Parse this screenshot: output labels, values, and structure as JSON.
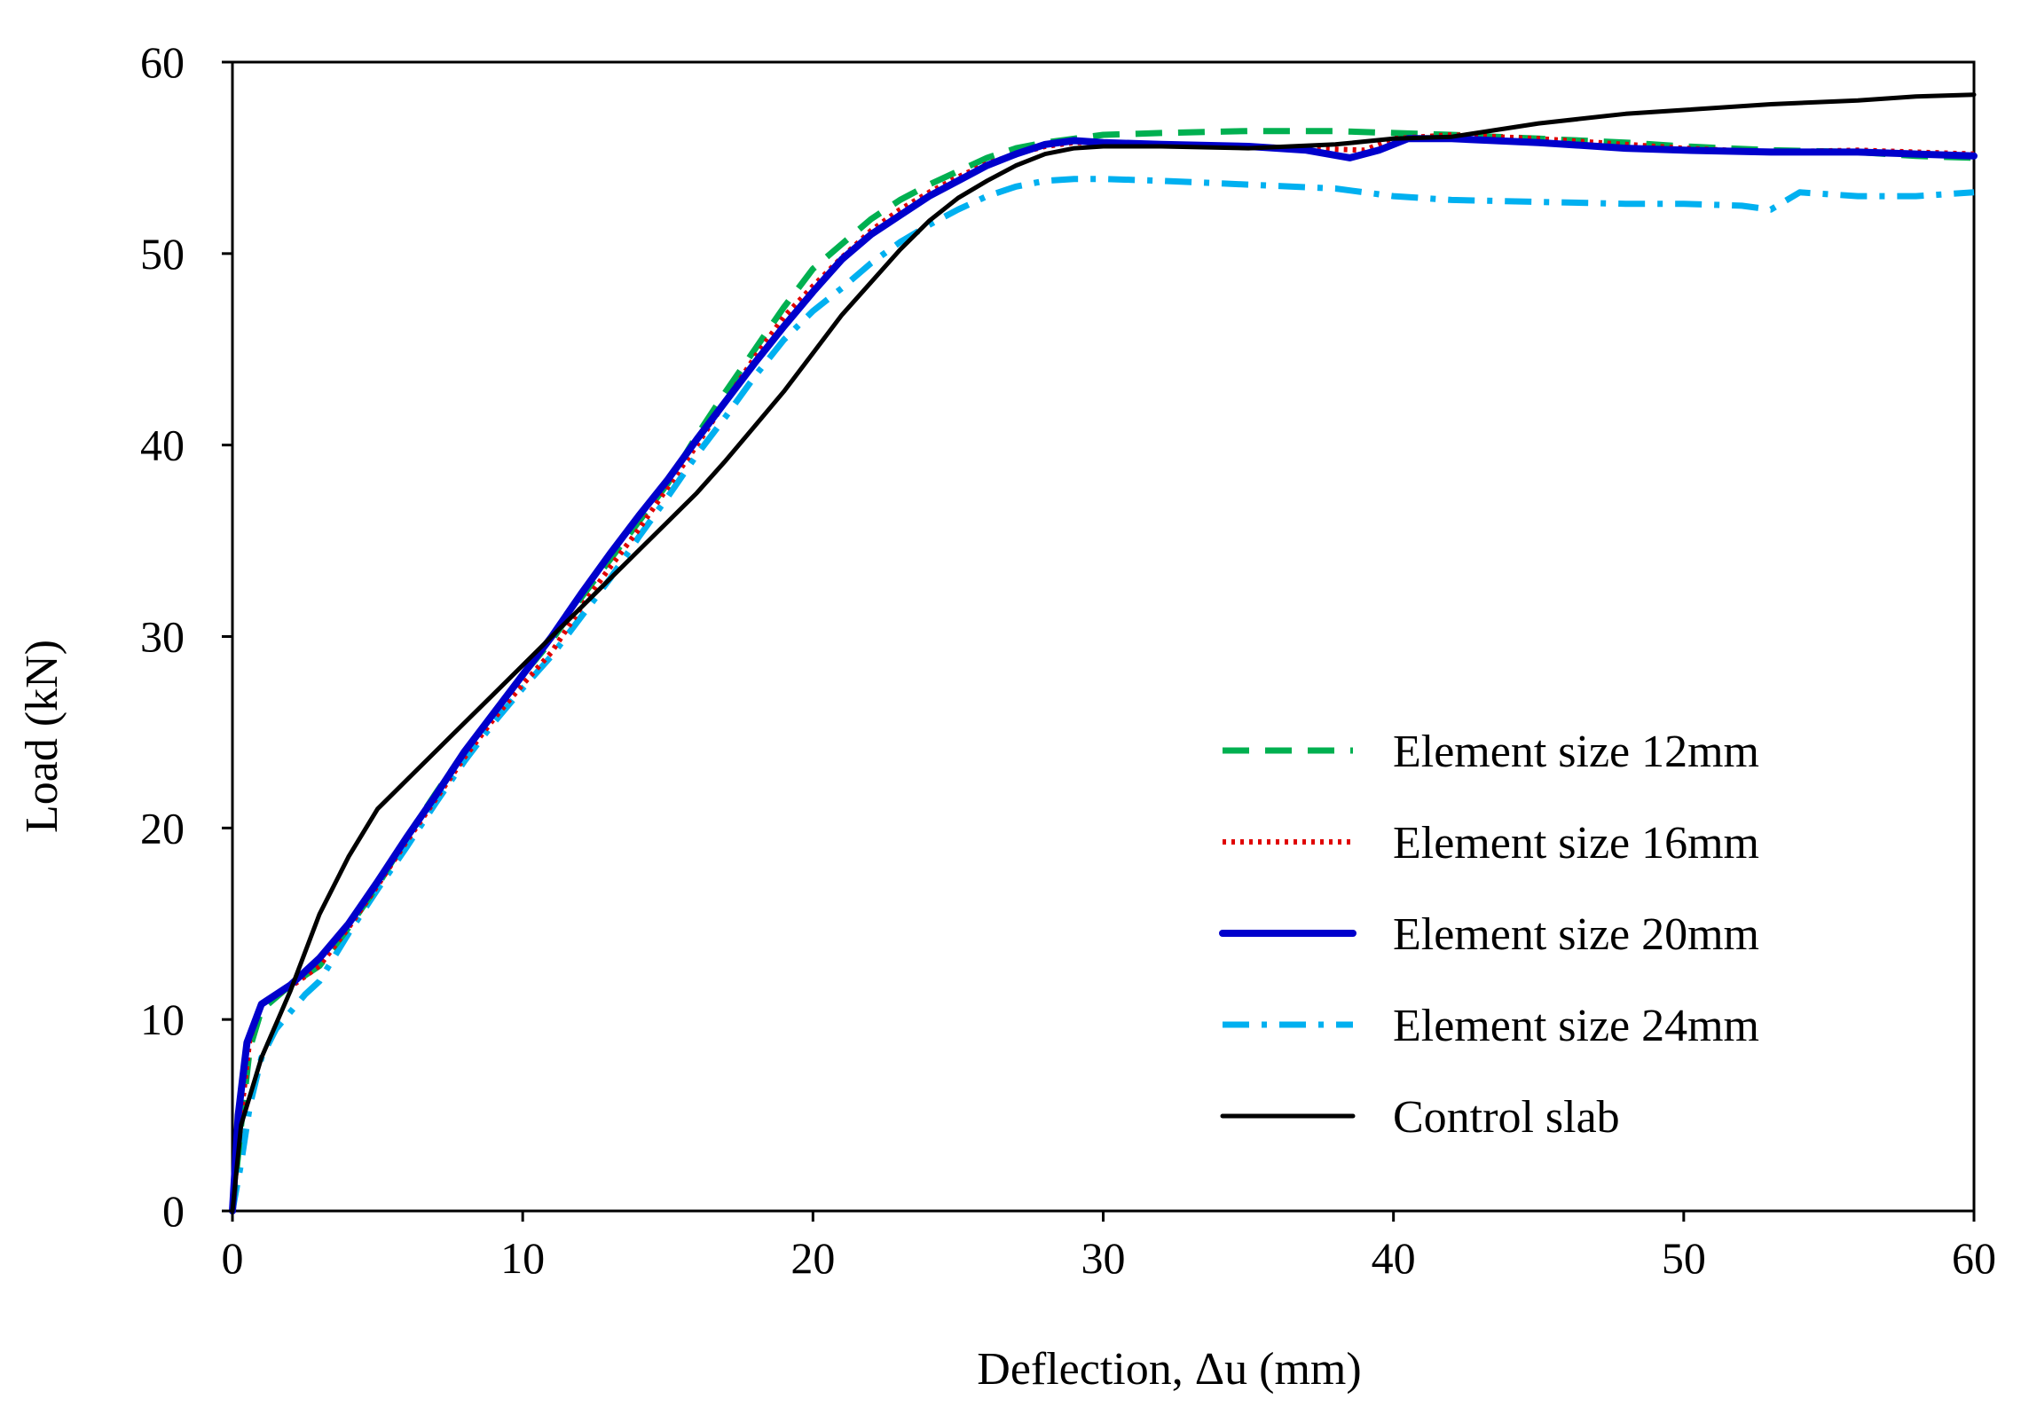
{
  "chart_data": {
    "type": "line",
    "title": "",
    "xlabel": "Deflection, Δu (mm)",
    "ylabel": "Load (kN)",
    "xlim": [
      0,
      60
    ],
    "ylim": [
      0,
      60
    ],
    "xticks": [
      0,
      10,
      20,
      30,
      40,
      50,
      60
    ],
    "yticks": [
      0,
      10,
      20,
      30,
      40,
      50,
      60
    ],
    "grid": false,
    "legend_position": "bottom-right",
    "series": [
      {
        "name": "Element size 12mm",
        "color": "#00B050",
        "style": "dashed",
        "x": [
          0,
          0.3,
          0.6,
          1.0,
          2.0,
          3.0,
          4.0,
          5.0,
          6.0,
          7.0,
          8.0,
          9.0,
          10.0,
          11.0,
          12.0,
          13.0,
          14.0,
          15.0,
          16.0,
          17.0,
          18.0,
          19.0,
          20.0,
          21.0,
          22.0,
          23.0,
          24.0,
          25.0,
          26.0,
          27.0,
          28.0,
          29.0,
          30.0,
          32.0,
          35.0,
          38.0,
          40.0,
          42.0,
          45.0,
          48.0,
          50.0,
          53.0,
          56.0,
          58.0,
          60.0
        ],
        "y": [
          0,
          4.5,
          8.5,
          10.5,
          11.8,
          12.8,
          14.8,
          17.0,
          19.5,
          21.8,
          24.0,
          26.0,
          28.0,
          29.8,
          32.0,
          34.0,
          36.0,
          38.0,
          40.5,
          42.8,
          45.0,
          47.2,
          49.2,
          50.5,
          51.8,
          52.8,
          53.6,
          54.3,
          55.0,
          55.5,
          55.8,
          56.0,
          56.2,
          56.3,
          56.4,
          56.4,
          56.3,
          56.2,
          56.0,
          55.8,
          55.6,
          55.4,
          55.3,
          55.1,
          55.0
        ]
      },
      {
        "name": "Element size 16mm",
        "color": "#E00000",
        "style": "dotted",
        "x": [
          0,
          0.3,
          0.6,
          1.0,
          2.0,
          3.0,
          4.0,
          5.0,
          6.0,
          7.0,
          8.0,
          9.0,
          10.0,
          11.0,
          12.0,
          13.0,
          14.0,
          15.0,
          16.0,
          17.0,
          18.0,
          19.0,
          20.0,
          21.0,
          22.0,
          23.0,
          24.0,
          25.0,
          26.0,
          27.0,
          28.0,
          29.0,
          30.0,
          32.0,
          35.0,
          37.0,
          39.0,
          40.0,
          42.0,
          45.0,
          46.0,
          48.0,
          50.0,
          53.0,
          56.0,
          60.0
        ],
        "y": [
          0,
          5.0,
          9.0,
          10.8,
          11.7,
          12.8,
          14.8,
          17.0,
          19.3,
          21.5,
          23.7,
          25.7,
          27.5,
          29.2,
          31.5,
          33.6,
          35.6,
          37.8,
          40.0,
          42.3,
          44.6,
          46.7,
          48.3,
          49.8,
          51.2,
          52.3,
          53.2,
          54.0,
          54.7,
          55.2,
          55.6,
          55.8,
          55.8,
          55.7,
          55.6,
          55.5,
          55.4,
          56.0,
          56.2,
          56.0,
          55.9,
          55.7,
          55.5,
          55.3,
          55.4,
          55.2
        ]
      },
      {
        "name": "Element size 20mm",
        "color": "#0000CC",
        "style": "solid-thick",
        "x": [
          0,
          0.2,
          0.5,
          1.0,
          2.0,
          3.0,
          4.0,
          5.0,
          6.0,
          7.0,
          8.0,
          9.0,
          10.0,
          11.0,
          12.0,
          13.0,
          14.0,
          15.0,
          16.0,
          17.0,
          18.0,
          19.0,
          20.0,
          21.0,
          22.0,
          23.0,
          24.0,
          25.0,
          26.0,
          27.0,
          28.0,
          29.0,
          30.0,
          32.0,
          35.0,
          37.0,
          38.5,
          39.5,
          40.5,
          42.0,
          45.0,
          48.0,
          50.0,
          53.0,
          56.0,
          60.0
        ],
        "y": [
          0,
          5.0,
          8.8,
          10.8,
          11.8,
          13.2,
          15.0,
          17.2,
          19.5,
          21.7,
          24.0,
          26.0,
          28.0,
          30.0,
          32.2,
          34.3,
          36.3,
          38.2,
          40.3,
          42.3,
          44.3,
          46.2,
          48.0,
          49.7,
          51.0,
          52.0,
          53.0,
          53.8,
          54.6,
          55.2,
          55.7,
          55.9,
          55.8,
          55.7,
          55.6,
          55.4,
          55.0,
          55.4,
          56.0,
          56.0,
          55.8,
          55.5,
          55.4,
          55.3,
          55.3,
          55.1
        ]
      },
      {
        "name": "Element size 24mm",
        "color": "#00B0F0",
        "style": "dashdot",
        "x": [
          0,
          0.3,
          0.6,
          1.0,
          1.5,
          2.5,
          3.0,
          4.0,
          5.0,
          6.0,
          7.0,
          8.0,
          9.0,
          10.0,
          11.0,
          12.0,
          13.0,
          14.0,
          15.0,
          16.0,
          17.0,
          18.0,
          19.0,
          20.0,
          21.0,
          22.0,
          23.0,
          24.0,
          25.0,
          26.0,
          27.0,
          28.0,
          29.0,
          30.0,
          32.0,
          35.0,
          38.0,
          40.0,
          42.0,
          45.0,
          48.0,
          50.0,
          52.0,
          53.0,
          54.0,
          56.0,
          58.0,
          60.0
        ],
        "y": [
          0,
          2.5,
          5.5,
          8.0,
          9.5,
          11.3,
          12.0,
          14.5,
          16.8,
          19.0,
          21.3,
          23.5,
          25.5,
          27.3,
          29.0,
          31.0,
          33.0,
          35.2,
          37.3,
          39.5,
          41.5,
          43.6,
          45.5,
          47.0,
          48.2,
          49.5,
          50.6,
          51.5,
          52.3,
          53.0,
          53.5,
          53.8,
          53.9,
          53.9,
          53.8,
          53.6,
          53.4,
          53.0,
          52.8,
          52.7,
          52.6,
          52.6,
          52.5,
          52.3,
          53.2,
          53.0,
          53.0,
          53.2
        ]
      },
      {
        "name": "Control slab",
        "color": "#000000",
        "style": "solid",
        "x": [
          0,
          0.3,
          0.7,
          1.0,
          2.0,
          3.0,
          4.0,
          5.0,
          6.0,
          7.0,
          8.0,
          9.0,
          10.0,
          11.0,
          12.0,
          13.0,
          14.0,
          15.0,
          16.0,
          17.0,
          18.0,
          19.0,
          20.0,
          21.0,
          22.0,
          23.0,
          24.0,
          25.0,
          26.0,
          27.0,
          28.0,
          29.0,
          30.0,
          32.0,
          35.0,
          38.0,
          40.0,
          42.0,
          45.0,
          48.0,
          50.0,
          53.0,
          56.0,
          58.0,
          60.0
        ],
        "y": [
          0,
          4.5,
          6.5,
          8.0,
          11.5,
          15.5,
          18.5,
          21.0,
          22.5,
          24.0,
          25.5,
          27.0,
          28.5,
          30.0,
          31.5,
          33.0,
          34.5,
          36.0,
          37.5,
          39.2,
          41.0,
          42.8,
          44.8,
          46.8,
          48.5,
          50.2,
          51.7,
          52.9,
          53.8,
          54.6,
          55.2,
          55.5,
          55.6,
          55.6,
          55.5,
          55.7,
          56.0,
          56.1,
          56.8,
          57.3,
          57.5,
          57.8,
          58.0,
          58.2,
          58.3
        ]
      }
    ]
  }
}
